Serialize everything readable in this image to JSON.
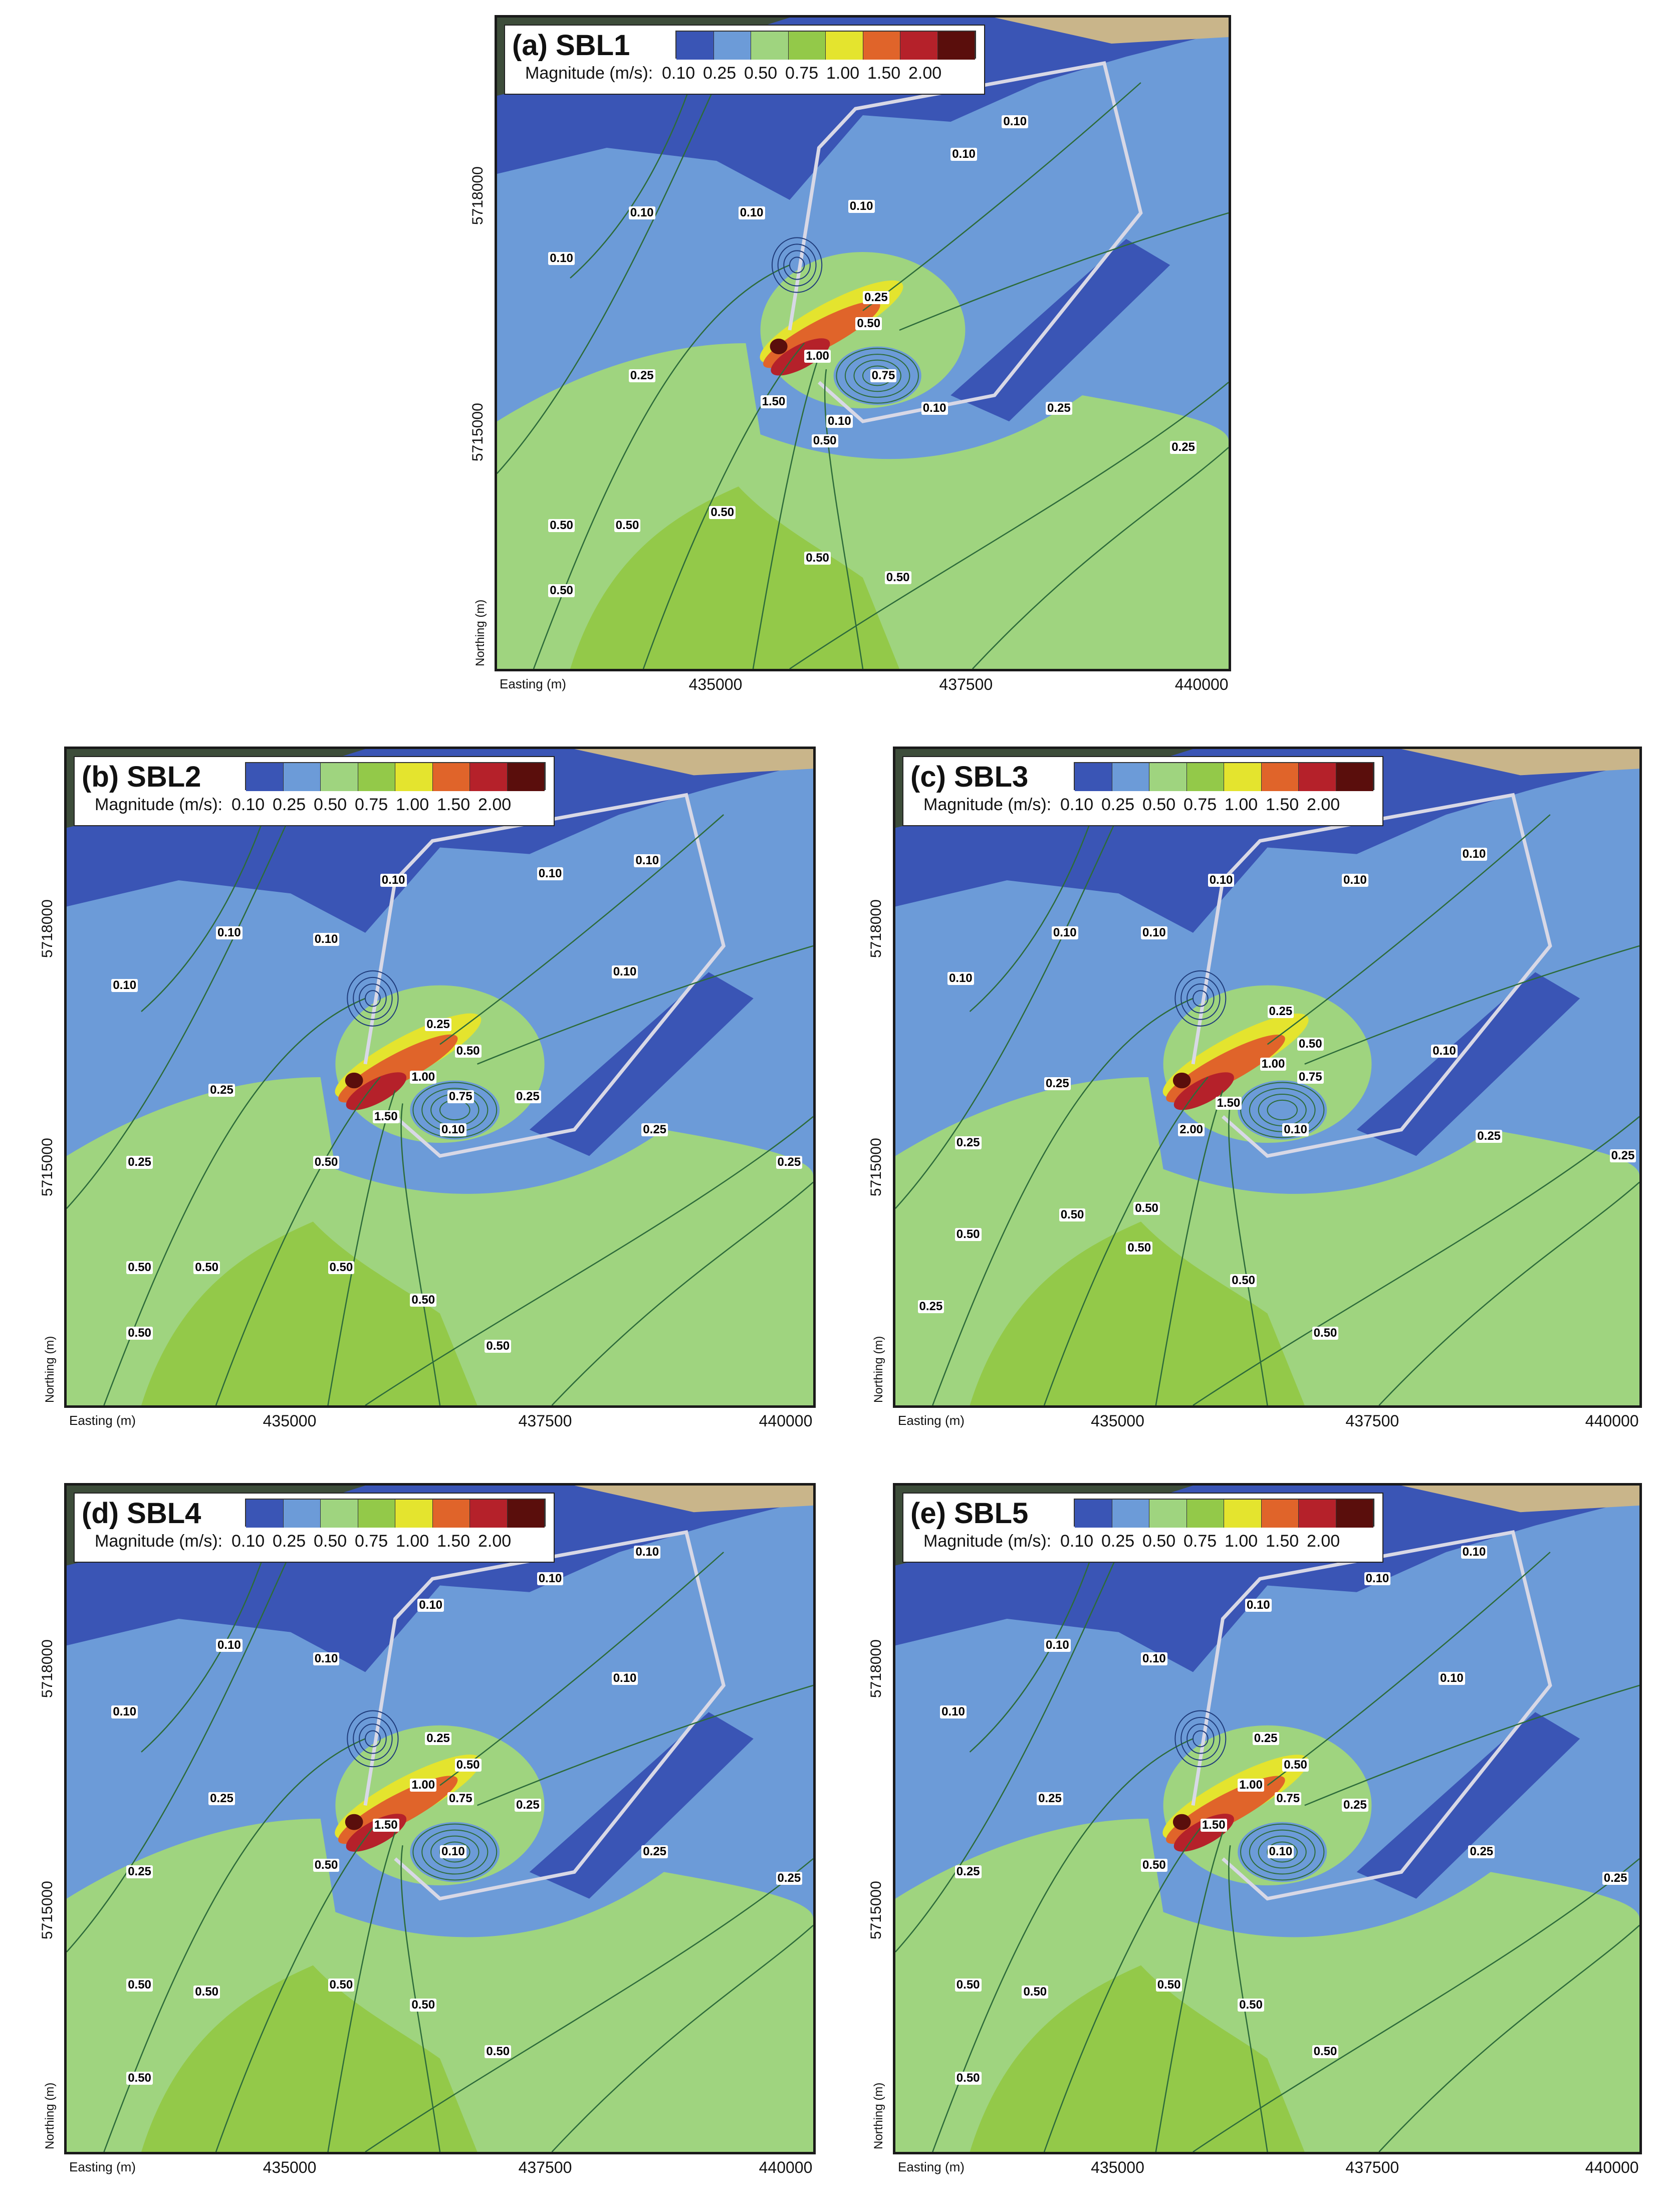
{
  "legend": {
    "label": "Magnitude (m/s):",
    "ticks": [
      "0.10",
      "0.25",
      "0.50",
      "0.75",
      "1.00",
      "1.50",
      "2.00"
    ],
    "colors": [
      "#3a55b5",
      "#6c9bd8",
      "#9fd47f",
      "#93c949",
      "#e4e42e",
      "#e0642a",
      "#b5212a",
      "#5a0e0c"
    ]
  },
  "axes": {
    "xlabel": "Easting (m)",
    "ylabel": "Northing (m)",
    "xticks": [
      "435000",
      "437500",
      "440000"
    ],
    "yticks": [
      "5718000",
      "5715000"
    ]
  },
  "panels": [
    {
      "title": "(a) SBL1",
      "labels": [
        "0.10",
        "0.10",
        "0.10",
        "0.10",
        "0.10",
        "0.10",
        "0.25",
        "0.50",
        "1.00",
        "0.75",
        "1.50",
        "0.10",
        "0.10",
        "0.25",
        "0.25",
        "0.25",
        "0.50",
        "0.50",
        "0.50",
        "0.50",
        "0.50",
        "0.50",
        "0.50"
      ]
    },
    {
      "title": "(b) SBL2",
      "labels": [
        "0.10",
        "0.10",
        "0.10",
        "0.10",
        "0.10",
        "0.10",
        "0.10",
        "0.25",
        "0.50",
        "1.00",
        "0.75",
        "0.25",
        "1.50",
        "0.10",
        "0.25",
        "0.25",
        "0.25",
        "0.25",
        "0.50",
        "0.50",
        "0.50",
        "0.50",
        "0.50",
        "0.50",
        "0.50"
      ]
    },
    {
      "title": "(c) SBL3",
      "labels": [
        "0.10",
        "0.10",
        "0.10",
        "0.10",
        "0.10",
        "0.10",
        "0.25",
        "0.50",
        "1.00",
        "0.75",
        "1.50",
        "2.00",
        "0.10",
        "0.10",
        "0.25",
        "0.25",
        "0.25",
        "0.25",
        "0.50",
        "0.50",
        "0.50",
        "0.50",
        "0.50",
        "0.25",
        "0.50"
      ]
    },
    {
      "title": "(d) SBL4",
      "labels": [
        "0.10",
        "0.10",
        "0.10",
        "0.10",
        "0.10",
        "0.10",
        "0.10",
        "0.25",
        "0.50",
        "1.00",
        "0.75",
        "0.25",
        "1.50",
        "0.10",
        "0.50",
        "0.25",
        "0.25",
        "0.25",
        "0.25",
        "0.50",
        "0.50",
        "0.50",
        "0.50",
        "0.50",
        "0.50"
      ]
    },
    {
      "title": "(e) SBL5",
      "labels": [
        "0.10",
        "0.10",
        "0.10",
        "0.10",
        "0.10",
        "0.10",
        "0.10",
        "0.25",
        "0.50",
        "1.00",
        "0.75",
        "0.25",
        "1.50",
        "0.10",
        "0.50",
        "0.25",
        "0.25",
        "0.25",
        "0.25",
        "0.50",
        "0.50",
        "0.50",
        "0.50",
        "0.50",
        "0.50"
      ]
    }
  ]
}
